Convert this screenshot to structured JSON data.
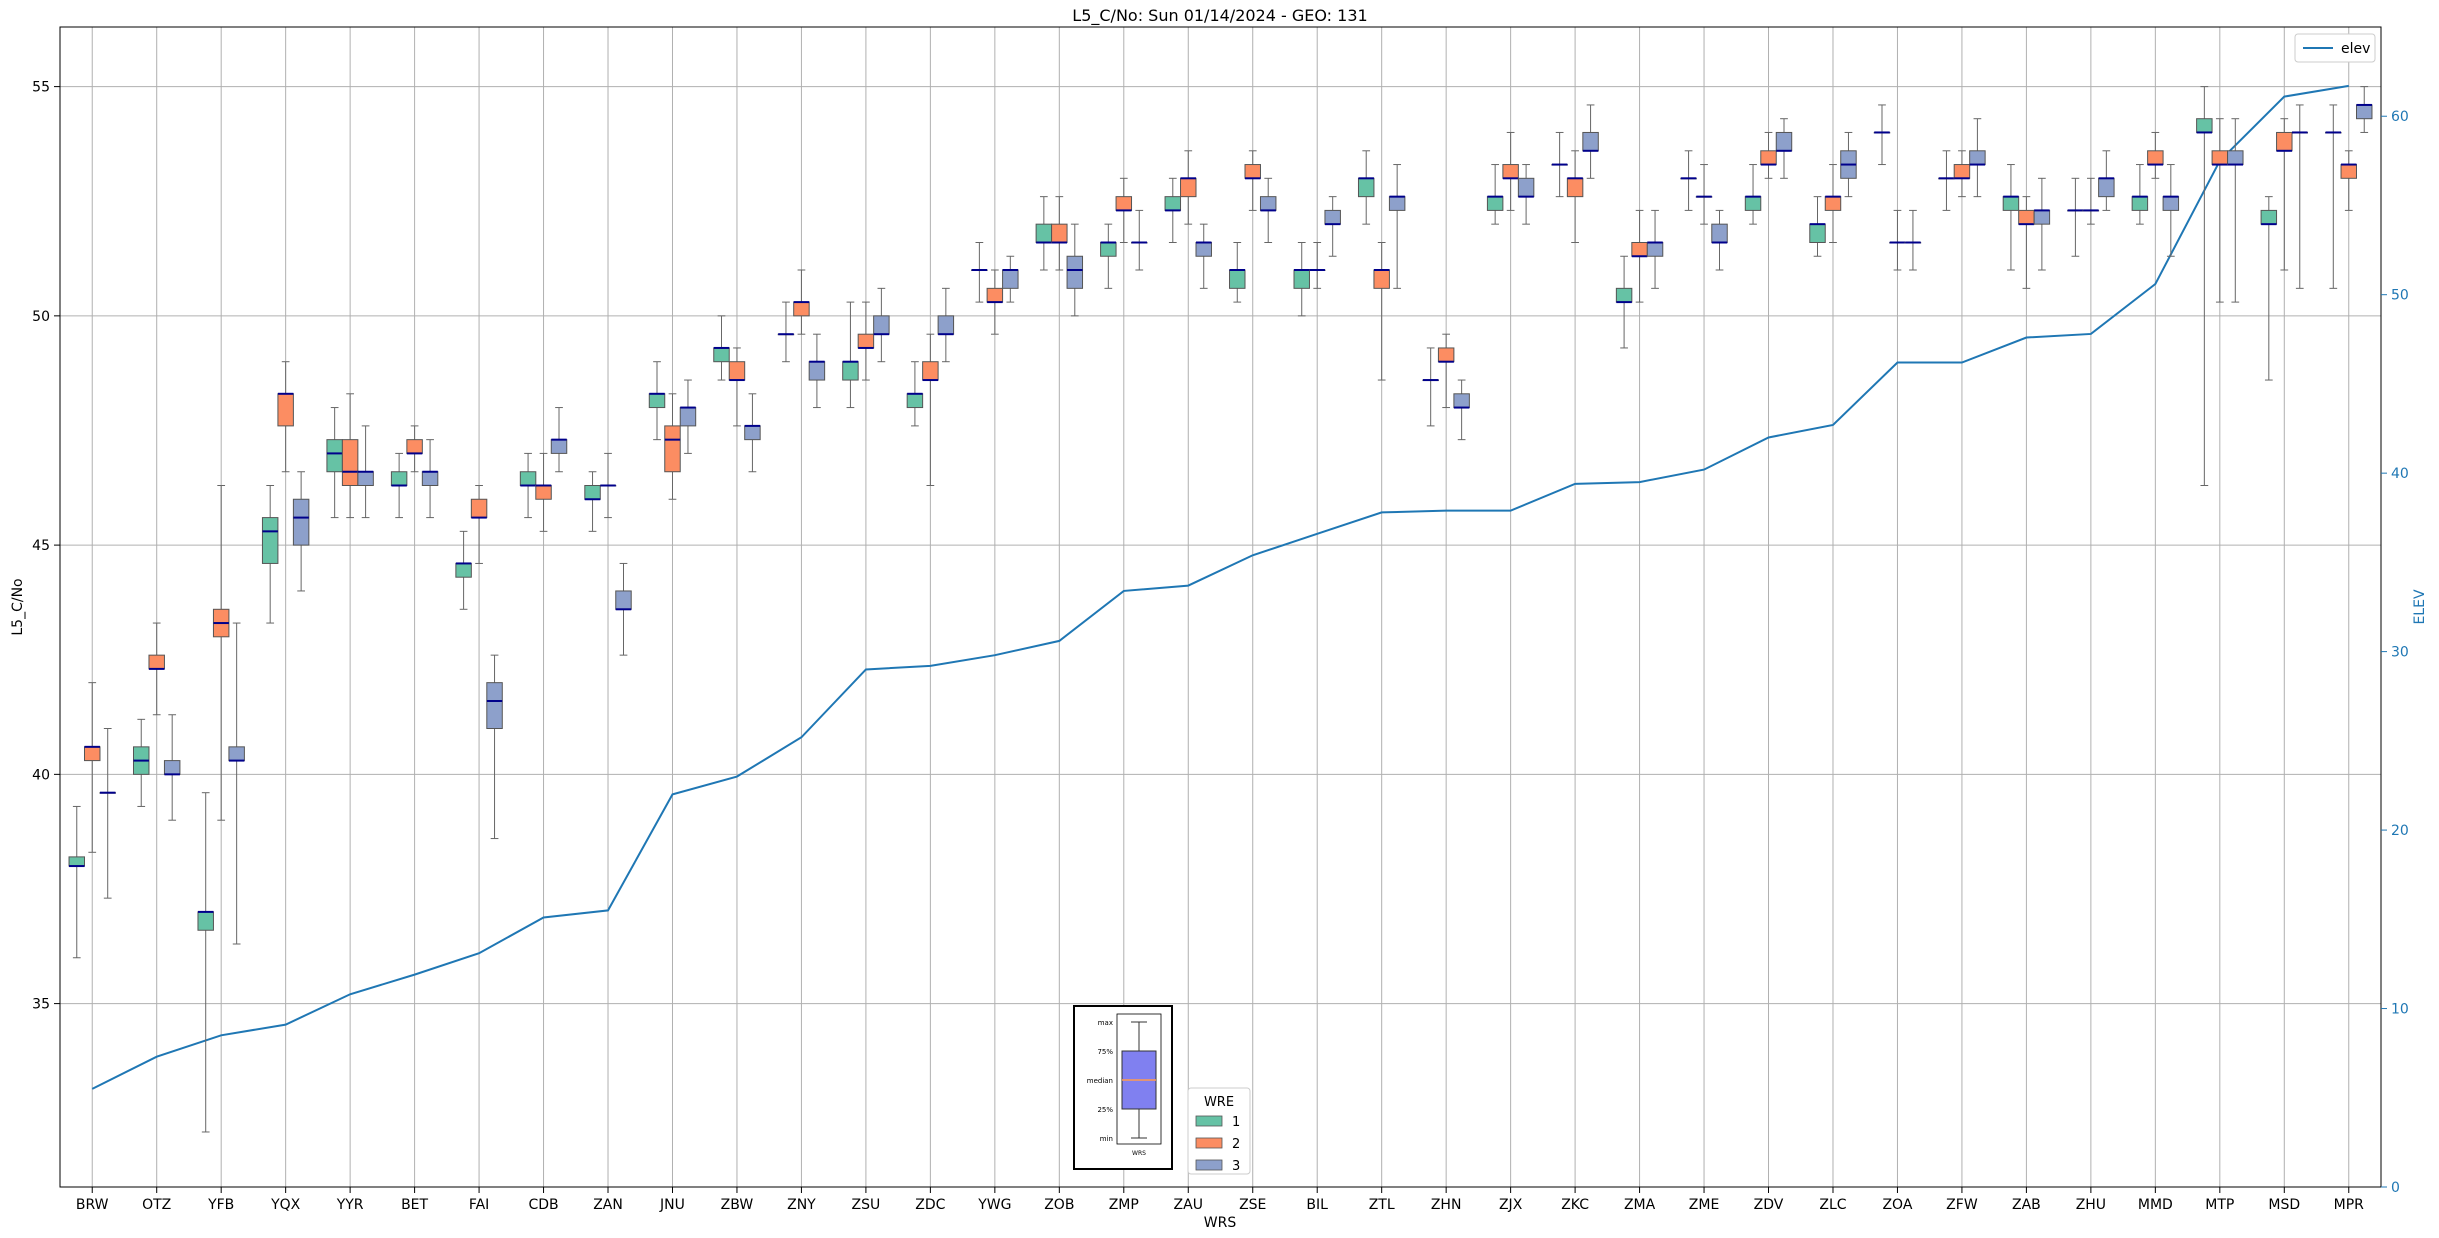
{
  "chart_data": {
    "type": "box",
    "title": "L5_C/No: Sun 01/14/2024 - GEO: 131",
    "xlabel": "WRS",
    "ylabel": "L5_C/No",
    "y2label": "ELEV",
    "ylim": [
      31,
      56.3
    ],
    "y2lim": [
      0,
      65
    ],
    "yticks": [
      35,
      40,
      45,
      50,
      55
    ],
    "y2ticks": [
      0,
      10,
      20,
      30,
      40,
      50,
      60
    ],
    "grid": true,
    "categories": [
      "BRW",
      "OTZ",
      "YFB",
      "YQX",
      "YYR",
      "BET",
      "FAI",
      "CDB",
      "ZAN",
      "JNU",
      "ZBW",
      "ZNY",
      "ZSU",
      "ZDC",
      "YWG",
      "ZOB",
      "ZMP",
      "ZAU",
      "ZSE",
      "BIL",
      "ZTL",
      "ZHN",
      "ZJX",
      "ZKC",
      "ZMA",
      "ZME",
      "ZDV",
      "ZLC",
      "ZOA",
      "ZFW",
      "ZAB",
      "ZHU",
      "MMD",
      "MTP",
      "MSD",
      "MPR"
    ],
    "hue_legend": {
      "title": "WRE",
      "entries": [
        {
          "label": "1",
          "color": "#66c2a5"
        },
        {
          "label": "2",
          "color": "#fc8d62"
        },
        {
          "label": "3",
          "color": "#8da0cb"
        }
      ],
      "placement": "lower-center"
    },
    "line_legend": {
      "label": "elev",
      "color": "#1f77b4",
      "placement": "upper-right"
    },
    "median_color": "#00008b",
    "whisker_color": "#666666",
    "elev": [
      5.5,
      7.3,
      8.5,
      9.1,
      10.8,
      11.9,
      13.1,
      15.1,
      15.5,
      22.0,
      23.0,
      25.2,
      29.0,
      29.2,
      29.8,
      30.6,
      33.4,
      33.7,
      35.4,
      36.6,
      37.8,
      37.9,
      37.9,
      39.4,
      39.5,
      40.2,
      42.0,
      42.7,
      46.2,
      46.2,
      47.6,
      47.8,
      50.6,
      57.5,
      61.1,
      61.7
    ],
    "series": [
      {
        "name": "1",
        "boxes": [
          [
            36.0,
            38.0,
            38.0,
            38.2,
            39.3
          ],
          [
            39.3,
            40.0,
            40.3,
            40.6,
            41.2
          ],
          [
            32.2,
            36.6,
            37.0,
            37.0,
            39.6
          ],
          [
            43.3,
            44.6,
            45.3,
            45.6,
            46.3
          ],
          [
            45.6,
            46.6,
            47.0,
            47.3,
            48.0
          ],
          [
            45.6,
            46.3,
            46.3,
            46.6,
            47.0
          ],
          [
            43.6,
            44.3,
            44.6,
            44.6,
            45.3
          ],
          [
            45.6,
            46.3,
            46.3,
            46.6,
            47.0
          ],
          [
            45.3,
            46.0,
            46.0,
            46.3,
            46.6
          ],
          [
            47.3,
            48.0,
            48.3,
            48.3,
            49.0
          ],
          [
            48.6,
            49.0,
            49.3,
            49.3,
            50.0
          ],
          [
            49.0,
            49.6,
            49.6,
            49.6,
            50.3
          ],
          [
            48.0,
            48.6,
            49.0,
            49.0,
            50.3
          ],
          [
            47.6,
            48.0,
            48.3,
            48.3,
            49.0
          ],
          [
            50.3,
            51.0,
            51.0,
            51.0,
            51.6
          ],
          [
            51.0,
            51.6,
            51.6,
            52.0,
            52.6
          ],
          [
            50.6,
            51.3,
            51.6,
            51.6,
            52.0
          ],
          [
            51.6,
            52.3,
            52.3,
            52.6,
            53.0
          ],
          [
            50.3,
            50.6,
            51.0,
            51.0,
            51.6
          ],
          [
            50.0,
            50.6,
            51.0,
            51.0,
            51.6
          ],
          [
            52.0,
            52.6,
            53.0,
            53.0,
            53.6
          ],
          [
            47.6,
            48.6,
            48.6,
            48.6,
            49.3
          ],
          [
            52.0,
            52.3,
            52.6,
            52.6,
            53.3
          ],
          [
            52.6,
            53.3,
            53.3,
            53.3,
            54.0
          ],
          [
            49.3,
            50.3,
            50.3,
            50.6,
            51.3
          ],
          [
            52.3,
            53.0,
            53.0,
            53.0,
            53.6
          ],
          [
            52.0,
            52.3,
            52.6,
            52.6,
            53.3
          ],
          [
            51.3,
            51.6,
            52.0,
            52.0,
            52.6
          ],
          [
            53.3,
            54.0,
            54.0,
            54.0,
            54.6
          ],
          [
            52.3,
            53.0,
            53.0,
            53.0,
            53.6
          ],
          [
            51.0,
            52.3,
            52.6,
            52.6,
            53.3
          ],
          [
            51.3,
            52.3,
            52.3,
            52.3,
            53.0
          ],
          [
            52.0,
            52.3,
            52.6,
            52.6,
            53.3
          ],
          [
            46.3,
            54.0,
            54.0,
            54.3,
            55.0
          ],
          [
            48.6,
            52.0,
            52.0,
            52.3,
            52.6
          ],
          [
            50.6,
            54.0,
            54.0,
            54.0,
            54.6
          ]
        ]
      },
      {
        "name": "2",
        "boxes": [
          [
            38.3,
            40.3,
            40.6,
            40.6,
            42.0
          ],
          [
            41.3,
            42.3,
            42.3,
            42.6,
            43.3
          ],
          [
            39.0,
            43.0,
            43.3,
            43.6,
            46.3
          ],
          [
            46.6,
            47.6,
            48.3,
            48.3,
            49.0
          ],
          [
            45.6,
            46.3,
            46.6,
            47.3,
            48.3
          ],
          [
            46.6,
            47.0,
            47.0,
            47.3,
            47.6
          ],
          [
            44.6,
            45.6,
            45.6,
            46.0,
            46.3
          ],
          [
            45.3,
            46.0,
            46.3,
            46.3,
            47.0
          ],
          [
            45.6,
            46.3,
            46.3,
            46.3,
            47.0
          ],
          [
            46.0,
            46.6,
            47.3,
            47.6,
            48.3
          ],
          [
            47.6,
            48.6,
            48.6,
            49.0,
            49.3
          ],
          [
            49.6,
            50.0,
            50.3,
            50.3,
            51.0
          ],
          [
            48.6,
            49.3,
            49.3,
            49.6,
            50.3
          ],
          [
            46.3,
            48.6,
            48.6,
            49.0,
            49.6
          ],
          [
            49.6,
            50.3,
            50.3,
            50.6,
            51.0
          ],
          [
            51.0,
            51.6,
            51.6,
            52.0,
            52.6
          ],
          [
            51.6,
            52.3,
            52.3,
            52.6,
            53.0
          ],
          [
            52.0,
            52.6,
            53.0,
            53.0,
            53.6
          ],
          [
            52.3,
            53.0,
            53.0,
            53.3,
            53.6
          ],
          [
            50.6,
            51.0,
            51.0,
            51.0,
            51.6
          ],
          [
            48.6,
            50.6,
            51.0,
            51.0,
            51.6
          ],
          [
            48.0,
            49.0,
            49.0,
            49.3,
            49.6
          ],
          [
            52.3,
            53.0,
            53.0,
            53.3,
            54.0
          ],
          [
            51.6,
            52.6,
            53.0,
            53.0,
            53.6
          ],
          [
            50.3,
            51.3,
            51.3,
            51.6,
            52.3
          ],
          [
            52.0,
            52.6,
            52.6,
            52.6,
            53.3
          ],
          [
            53.0,
            53.3,
            53.3,
            53.6,
            54.0
          ],
          [
            51.6,
            52.3,
            52.6,
            52.6,
            53.3
          ],
          [
            51.0,
            51.6,
            51.6,
            51.6,
            52.3
          ],
          [
            52.6,
            53.0,
            53.0,
            53.3,
            53.6
          ],
          [
            50.6,
            52.0,
            52.0,
            52.3,
            52.6
          ],
          [
            52.0,
            52.3,
            52.3,
            52.3,
            53.0
          ],
          [
            53.0,
            53.3,
            53.3,
            53.6,
            54.0
          ],
          [
            50.3,
            53.3,
            53.3,
            53.6,
            54.3
          ],
          [
            51.0,
            53.6,
            53.6,
            54.0,
            54.3
          ],
          [
            52.3,
            53.0,
            53.3,
            53.3,
            53.6
          ]
        ]
      },
      {
        "name": "3",
        "boxes": [
          [
            37.3,
            39.6,
            39.6,
            39.6,
            41.0
          ],
          [
            39.0,
            40.0,
            40.0,
            40.3,
            41.3
          ],
          [
            36.3,
            40.3,
            40.3,
            40.6,
            43.3
          ],
          [
            44.0,
            45.0,
            45.6,
            46.0,
            46.6
          ],
          [
            45.6,
            46.3,
            46.6,
            46.6,
            47.6
          ],
          [
            45.6,
            46.3,
            46.6,
            46.6,
            47.3
          ],
          [
            38.6,
            41.0,
            41.6,
            42.0,
            42.6
          ],
          [
            46.6,
            47.0,
            47.3,
            47.3,
            48.0
          ],
          [
            42.6,
            43.6,
            43.6,
            44.0,
            44.6
          ],
          [
            47.0,
            47.6,
            48.0,
            48.0,
            48.6
          ],
          [
            46.6,
            47.3,
            47.6,
            47.6,
            48.3
          ],
          [
            48.0,
            48.6,
            49.0,
            49.0,
            49.6
          ],
          [
            49.0,
            49.6,
            49.6,
            50.0,
            50.6
          ],
          [
            49.0,
            49.6,
            49.6,
            50.0,
            50.6
          ],
          [
            50.3,
            50.6,
            51.0,
            51.0,
            51.3
          ],
          [
            50.0,
            50.6,
            51.0,
            51.3,
            52.0
          ],
          [
            51.0,
            51.6,
            51.6,
            51.6,
            52.3
          ],
          [
            50.6,
            51.3,
            51.6,
            51.6,
            52.0
          ],
          [
            51.6,
            52.3,
            52.3,
            52.6,
            53.0
          ],
          [
            51.3,
            52.0,
            52.0,
            52.3,
            52.6
          ],
          [
            50.6,
            52.3,
            52.6,
            52.6,
            53.3
          ],
          [
            47.3,
            48.0,
            48.0,
            48.3,
            48.6
          ],
          [
            52.0,
            52.6,
            52.6,
            53.0,
            53.3
          ],
          [
            53.0,
            53.6,
            53.6,
            54.0,
            54.6
          ],
          [
            50.6,
            51.3,
            51.6,
            51.6,
            52.3
          ],
          [
            51.0,
            51.6,
            51.6,
            52.0,
            52.3
          ],
          [
            53.0,
            53.6,
            53.6,
            54.0,
            54.3
          ],
          [
            52.6,
            53.0,
            53.3,
            53.6,
            54.0
          ],
          [
            51.0,
            51.6,
            51.6,
            51.6,
            52.3
          ],
          [
            52.6,
            53.3,
            53.3,
            53.6,
            54.3
          ],
          [
            51.0,
            52.0,
            52.3,
            52.3,
            53.0
          ],
          [
            52.3,
            52.6,
            53.0,
            53.0,
            53.6
          ],
          [
            51.3,
            52.3,
            52.6,
            52.6,
            53.3
          ],
          [
            50.3,
            53.3,
            53.3,
            53.6,
            54.3
          ],
          [
            50.6,
            54.0,
            54.0,
            54.0,
            54.6
          ],
          [
            54.0,
            54.3,
            54.6,
            54.6,
            55.0
          ]
        ]
      }
    ],
    "inset": {
      "labels": [
        "max",
        "75%",
        "median",
        "25%",
        "min"
      ],
      "xlabel": "WRS",
      "box_color": "#8080f0",
      "median_color": "#ff9a4d"
    }
  }
}
